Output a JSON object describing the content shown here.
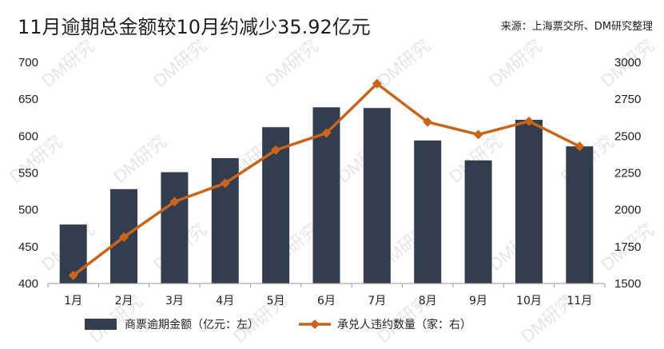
{
  "header": {
    "title": "11月逾期总金额较10月约减少35.92亿元",
    "source": "来源：上海票交所、DM研究整理"
  },
  "watermark": "DM研究",
  "colors": {
    "bar": "#343d4e",
    "line": "#c8651b",
    "axis": "#999999",
    "text": "#222222"
  },
  "chart_data": {
    "type": "bar",
    "categories": [
      "1月",
      "2月",
      "3月",
      "4月",
      "5月",
      "6月",
      "7月",
      "8月",
      "9月",
      "10月",
      "11月"
    ],
    "series": [
      {
        "name": "商票逾期金额（亿元：左）",
        "type": "bar",
        "axis": "left",
        "values": [
          480,
          528,
          551,
          570,
          612,
          639,
          638,
          594,
          567,
          622,
          586
        ]
      },
      {
        "name": "承兑人违约数量（家：右）",
        "type": "line",
        "axis": "right",
        "values": [
          1555,
          1815,
          2055,
          2180,
          2405,
          2520,
          2855,
          2595,
          2510,
          2600,
          2430
        ]
      }
    ],
    "y_left": {
      "min": 400,
      "max": 700,
      "ticks": [
        400,
        450,
        500,
        550,
        600,
        650,
        700
      ]
    },
    "y_right": {
      "min": 1500,
      "max": 3000,
      "ticks": [
        1500,
        1750,
        2000,
        2250,
        2500,
        2750,
        3000
      ]
    },
    "grid": false,
    "legend_position": "bottom"
  }
}
